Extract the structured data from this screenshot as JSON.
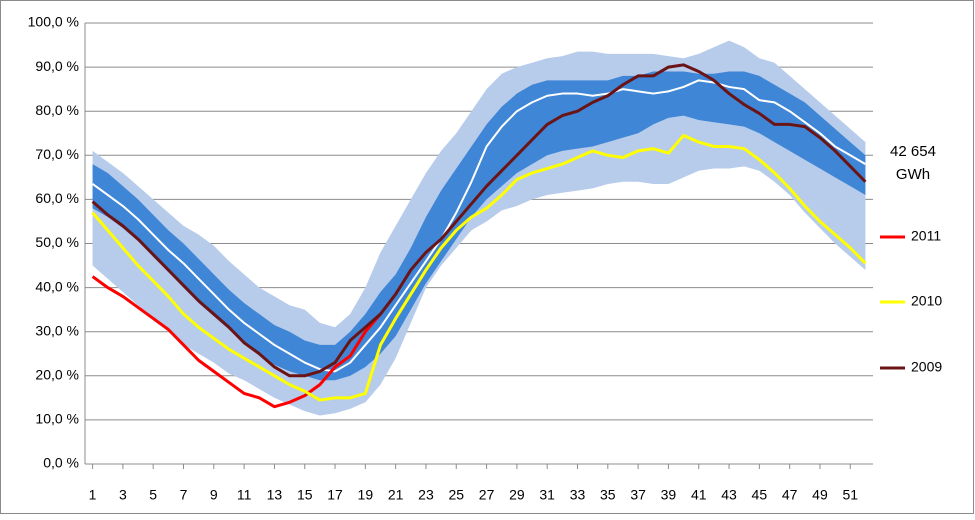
{
  "chart_data": {
    "type": "line",
    "annotation": [
      "42 654",
      "GWh"
    ],
    "x": [
      1,
      2,
      3,
      4,
      5,
      6,
      7,
      8,
      9,
      10,
      11,
      12,
      13,
      14,
      15,
      16,
      17,
      18,
      19,
      20,
      21,
      22,
      23,
      24,
      25,
      26,
      27,
      28,
      29,
      30,
      31,
      32,
      33,
      34,
      35,
      36,
      37,
      38,
      39,
      40,
      41,
      42,
      43,
      44,
      45,
      46,
      47,
      48,
      49,
      50,
      51,
      52
    ],
    "xlim": [
      0.5,
      52.5
    ],
    "xticks": [
      1,
      3,
      5,
      7,
      9,
      11,
      13,
      15,
      17,
      19,
      21,
      23,
      25,
      27,
      29,
      31,
      33,
      35,
      37,
      39,
      41,
      43,
      45,
      47,
      49,
      51
    ],
    "ylim": [
      0,
      100
    ],
    "yticks": [
      {
        "value": 0,
        "label": "0,0 %"
      },
      {
        "value": 10,
        "label": "10,0 %"
      },
      {
        "value": 20,
        "label": "20,0 %"
      },
      {
        "value": 30,
        "label": "30,0 %"
      },
      {
        "value": 40,
        "label": "40,0 %"
      },
      {
        "value": 50,
        "label": "50,0 %"
      },
      {
        "value": 60,
        "label": "60,0 %"
      },
      {
        "value": 70,
        "label": "70,0 %"
      },
      {
        "value": 80,
        "label": "80,0 %"
      },
      {
        "value": 90,
        "label": "90,0 %"
      },
      {
        "value": 100,
        "label": "100,0 %"
      }
    ],
    "grid": true,
    "legend": "right",
    "bands": [
      {
        "color": "#b7cbeb",
        "upper": [
          71,
          68.5,
          66,
          63,
          60,
          57,
          54,
          52,
          49.5,
          46,
          43,
          40,
          38,
          36,
          35,
          32,
          31,
          34,
          40,
          48,
          54,
          60,
          66,
          71,
          75,
          80,
          85,
          88.5,
          90,
          91,
          92,
          92.5,
          93.5,
          93.5,
          93,
          93,
          93,
          93,
          92.5,
          92,
          93,
          94.5,
          96,
          94.5,
          92,
          91,
          88,
          85,
          82,
          79,
          76,
          73
        ],
        "lower": [
          45,
          42,
          39,
          36,
          33,
          30,
          27,
          25,
          23,
          20.5,
          19,
          17,
          15,
          13.5,
          12,
          11,
          11.5,
          12.5,
          14,
          18,
          24,
          32,
          40,
          45,
          49,
          53,
          55,
          57.5,
          58.5,
          60,
          61,
          61.5,
          62,
          62.5,
          63.5,
          64,
          64,
          63.5,
          63.5,
          65,
          66.5,
          67,
          67,
          67.5,
          66.5,
          64,
          61,
          57,
          53.5,
          50,
          47,
          44
        ]
      },
      {
        "color": "#3f86d6",
        "upper": [
          68,
          66,
          63,
          60,
          56.5,
          53,
          50,
          46.5,
          43,
          39.5,
          36.5,
          34,
          31.5,
          30,
          28,
          27,
          27,
          30,
          34,
          39,
          43,
          49,
          56,
          62,
          67,
          72,
          77,
          81,
          84,
          86,
          87,
          87,
          87,
          87,
          87,
          88,
          88,
          89,
          89,
          89,
          88.5,
          88.5,
          89,
          89,
          88,
          86,
          84,
          82,
          79,
          76,
          73,
          70
        ],
        "lower": [
          58,
          56,
          53.5,
          50.5,
          47,
          43.5,
          40,
          36.5,
          33.5,
          30.5,
          27.5,
          25,
          22.5,
          21,
          20,
          19,
          19,
          20,
          22,
          25,
          29,
          35,
          41,
          46,
          51,
          56,
          60,
          63,
          66,
          68,
          70,
          71,
          71.5,
          72,
          73,
          74,
          75,
          77,
          78.5,
          79,
          78,
          77.5,
          77,
          76.5,
          75,
          73,
          71,
          69,
          67,
          65,
          63,
          61
        ]
      }
    ],
    "median": {
      "color": "#ffffff",
      "values": [
        63.5,
        61,
        58.5,
        55.5,
        52,
        48.5,
        45.5,
        42,
        38.5,
        35,
        32,
        29.5,
        27,
        25,
        23,
        21.5,
        21,
        23,
        27,
        31,
        36,
        41,
        46,
        51,
        57,
        64,
        72,
        76.5,
        80,
        82,
        83.5,
        84,
        84,
        83.5,
        84,
        85,
        84.5,
        84,
        84.5,
        85.5,
        87,
        86.5,
        85.5,
        85,
        82.5,
        82,
        80,
        77.5,
        75,
        72,
        70,
        68
      ]
    },
    "series": [
      {
        "name": "2011",
        "color": "#ff0000",
        "values": [
          42.5,
          40,
          38,
          35.5,
          33,
          30.5,
          27,
          23.5,
          21,
          18.5,
          16,
          15,
          13,
          14,
          15.5,
          18,
          22,
          24.5,
          30,
          34,
          null,
          null,
          null,
          null,
          null,
          null,
          null,
          null,
          null,
          null,
          null,
          null,
          null,
          null,
          null,
          null,
          null,
          null,
          null,
          null,
          null,
          null,
          null,
          null,
          null,
          null,
          null,
          null,
          null,
          null,
          null,
          null
        ]
      },
      {
        "name": "2010",
        "color": "#ffff00",
        "values": [
          57,
          53,
          49,
          45,
          41.5,
          38,
          34,
          31,
          28.5,
          26,
          24,
          22,
          20,
          18,
          16.5,
          14.5,
          15,
          15,
          16,
          27,
          33,
          38.5,
          44,
          49,
          53,
          56,
          58,
          61,
          64.5,
          66,
          67,
          68,
          69.5,
          71,
          70,
          69.5,
          71,
          71.5,
          70.5,
          74.5,
          73,
          72,
          72,
          71.5,
          69,
          66,
          62.5,
          58.5,
          55,
          52,
          49,
          45.5
        ]
      },
      {
        "name": "2009",
        "color": "#6b1416",
        "values": [
          59.5,
          56.5,
          54,
          51,
          47.5,
          44,
          40.5,
          37,
          34,
          31,
          27.5,
          25,
          22,
          20,
          20,
          21,
          23,
          28,
          31,
          34,
          38.5,
          44,
          48,
          51,
          55,
          59,
          63,
          66.5,
          70,
          73.5,
          77,
          79,
          80,
          82,
          83.5,
          86,
          88,
          88,
          90,
          90.5,
          89,
          87,
          84,
          81.5,
          79.5,
          77,
          77,
          76.5,
          74,
          71,
          67.5,
          64
        ]
      }
    ]
  }
}
